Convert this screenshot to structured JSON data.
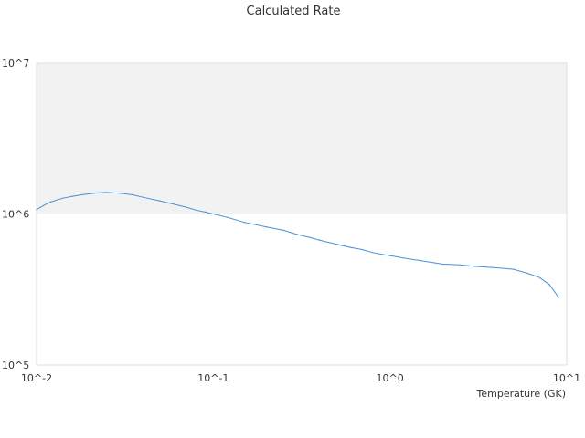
{
  "chart_data": {
    "type": "line",
    "title": "Calculated Rate",
    "xlabel": "Temperature (GK)",
    "ylabel": "",
    "xscale": "log",
    "yscale": "log",
    "xlim": [
      0.01,
      10
    ],
    "ylim": [
      100000,
      10000000
    ],
    "x_ticks": [
      {
        "value": 0.01,
        "label": "10^-2"
      },
      {
        "value": 0.1,
        "label": "10^-1"
      },
      {
        "value": 1,
        "label": "10^0"
      },
      {
        "value": 10,
        "label": "10^1"
      }
    ],
    "y_ticks": [
      {
        "value": 100000,
        "label": "10^5"
      },
      {
        "value": 1000000,
        "label": "10^6"
      },
      {
        "value": 10000000,
        "label": "10^7"
      }
    ],
    "grid": false,
    "band": {
      "from": 1000000,
      "to": 10000000,
      "color": "#f2f2f2"
    },
    "line_color": "#4a90d9",
    "series": [
      {
        "x": [
          0.01,
          0.011,
          0.012,
          0.014,
          0.016,
          0.018,
          0.02,
          0.022,
          0.025,
          0.03,
          0.035,
          0.04,
          0.05,
          0.06,
          0.07,
          0.08,
          0.09,
          0.1,
          0.12,
          0.15,
          0.2,
          0.25,
          0.3,
          0.35,
          0.4,
          0.5,
          0.6,
          0.7,
          0.8,
          0.9,
          1.0,
          1.2,
          1.5,
          2.0,
          2.5,
          3.0,
          3.5,
          4.0,
          5.0,
          6.0,
          7.0,
          8.0,
          9.0
        ],
        "y": [
          1070000,
          1140000,
          1200000,
          1270000,
          1310000,
          1340000,
          1360000,
          1380000,
          1390000,
          1370000,
          1340000,
          1290000,
          1220000,
          1160000,
          1110000,
          1060000,
          1030000,
          1000000,
          950000,
          880000,
          820000,
          780000,
          730000,
          700000,
          670000,
          630000,
          600000,
          580000,
          555000,
          540000,
          530000,
          510000,
          490000,
          465000,
          460000,
          450000,
          445000,
          440000,
          430000,
          405000,
          380000,
          340000,
          280000
        ]
      }
    ]
  }
}
